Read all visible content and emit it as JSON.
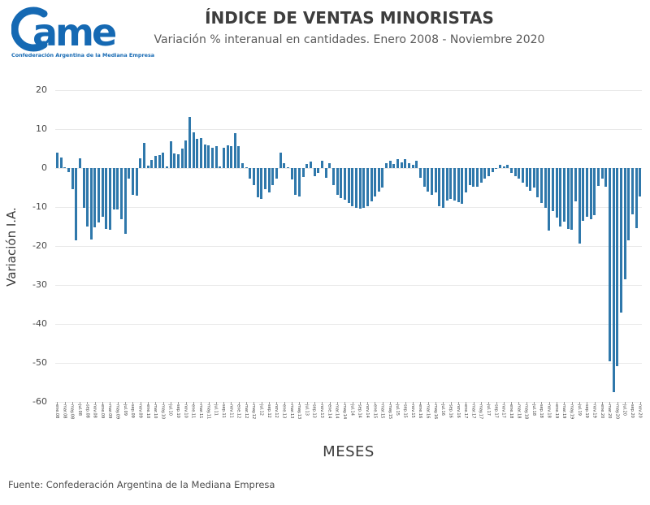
{
  "header": {
    "logo_text": "Came",
    "logo_tagline": "Confederación Argentina de la Mediana Empresa",
    "logo_color": "#1569b3",
    "title": "ÍNDICE DE VENTAS MINORISTAS",
    "subtitle": "Variación % interanual en cantidades. Enero 2008 - Noviembre 2020"
  },
  "footer": {
    "source": "Fuente: Confederación Argentina de la Mediana Empresa"
  },
  "chart_data": {
    "type": "bar",
    "title": "ÍNDICE DE VENTAS MINORISTAS",
    "subtitle": "Variación % interanual en cantidades. Enero 2008 - Noviembre 2020",
    "xlabel": "MESES",
    "ylabel": "Variación I.A.",
    "ylim": [
      -60,
      20
    ],
    "yticks": [
      20,
      10,
      0,
      -10,
      -20,
      -30,
      -40,
      -50,
      -60
    ],
    "grid": "horizontal",
    "legend": "none",
    "bar_color": "#2f78ab",
    "xtick_label_every": 2,
    "categories": [
      "ene.08",
      "feb.08",
      "mar.08",
      "abr.08",
      "may.08",
      "jun.08",
      "jul.08",
      "ago.08",
      "sep.08",
      "oct.08",
      "nov.08",
      "dic.08",
      "ene.09",
      "feb.09",
      "mar.09",
      "abr.09",
      "may.09",
      "jun.09",
      "jul.09",
      "ago.09",
      "sep.09",
      "oct.09",
      "nov.09",
      "dic.09",
      "ene.10",
      "feb.10",
      "mar.10",
      "abr.10",
      "may.10",
      "jun.10",
      "jul.10",
      "ago.10",
      "sep.10",
      "oct.10",
      "nov.10",
      "dic.10",
      "ene.11",
      "feb.11",
      "mar.11",
      "abr.11",
      "may.11",
      "jun.11",
      "jul.11",
      "ago.11",
      "sep.11",
      "oct.11",
      "nov.11",
      "dic.11",
      "ene.12",
      "feb.12",
      "mar.12",
      "abr.12",
      "may.12",
      "jun.12",
      "jul.12",
      "ago.12",
      "sep.12",
      "oct.12",
      "nov.12",
      "dic.12",
      "ene.13",
      "feb.13",
      "mar.13",
      "abr.13",
      "may.13",
      "jun.13",
      "jul.13",
      "ago.13",
      "sep.13",
      "oct.13",
      "nov.13",
      "dic.13",
      "ene.14",
      "feb.14",
      "mar.14",
      "abr.14",
      "may.14",
      "jun.14",
      "jul.14",
      "ago.14",
      "sep.14",
      "oct.14",
      "nov.14",
      "dic.14",
      "ene.15",
      "feb.15",
      "mar.15",
      "abr.15",
      "may.15",
      "jun.15",
      "jul.15",
      "ago.15",
      "sep.15",
      "oct.15",
      "nov.15",
      "dic.15",
      "ene.16",
      "feb.16",
      "mar.16",
      "abr.16",
      "may.16",
      "jun.16",
      "jul.16",
      "ago.16",
      "sep.16",
      "oct.16",
      "nov.16",
      "dic.16",
      "ene.17",
      "feb.17",
      "mar.17",
      "abr.17",
      "may.17",
      "jun.17",
      "jul.17",
      "ago.17",
      "sep.17",
      "oct.17",
      "nov.17",
      "dic.17",
      "ene.18",
      "feb.18",
      "mar.18",
      "abr.18",
      "may.18",
      "jun.18",
      "jul.18",
      "ago.18",
      "sep.18",
      "oct.18",
      "nov.18",
      "dic.18",
      "ene.19",
      "feb.19",
      "mar.19",
      "abr.19",
      "may.19",
      "jun.19",
      "jul.19",
      "ago.19",
      "sep.19",
      "oct.19",
      "nov.19",
      "dic.19",
      "ene.20",
      "feb.20",
      "mar.20",
      "abr.20",
      "may.20",
      "jun.20",
      "jul.20",
      "ago.20",
      "sep.20",
      "oct.20",
      "nov.20"
    ],
    "values": [
      3.9,
      2.8,
      0.3,
      -1.1,
      -5.5,
      -18.5,
      2.5,
      -10.3,
      -14.9,
      -18.3,
      -15.2,
      -14.0,
      -12.4,
      -15.6,
      -15.9,
      -10.7,
      -10.7,
      -13.1,
      -16.9,
      -2.7,
      -6.8,
      -7.0,
      2.5,
      6.5,
      0.6,
      2.0,
      3.2,
      3.3,
      4.0,
      0.5,
      6.8,
      3.7,
      3.5,
      5.1,
      7.0,
      13.2,
      9.1,
      7.4,
      7.7,
      6.0,
      5.8,
      5.3,
      5.6,
      0.4,
      5.3,
      5.8,
      5.6,
      9.0,
      5.6,
      1.3,
      0.2,
      -2.7,
      -4.4,
      -7.6,
      -7.9,
      -5.5,
      -6.2,
      -4.4,
      -2.7,
      3.9,
      1.3,
      0.2,
      -3.0,
      -6.9,
      -7.2,
      -2.2,
      1.1,
      1.6,
      -2.0,
      -1.3,
      1.9,
      -2.4,
      1.2,
      -4.4,
      -6.9,
      -7.8,
      -8.1,
      -9.0,
      -9.7,
      -10.2,
      -10.5,
      -10.3,
      -9.7,
      -8.6,
      -7.2,
      -6.0,
      -5.1,
      1.3,
      1.8,
      1.1,
      2.2,
      1.5,
      2.2,
      1.3,
      0.9,
      1.9,
      -2.4,
      -4.8,
      -6.0,
      -6.9,
      -6.3,
      -9.7,
      -10.3,
      -8.4,
      -7.9,
      -8.3,
      -8.8,
      -9.1,
      -6.2,
      -4.4,
      -4.8,
      -4.7,
      -3.8,
      -2.8,
      -2.0,
      -1.0,
      0.1,
      0.9,
      0.4,
      0.8,
      -1.3,
      -2.0,
      -2.8,
      -3.8,
      -4.8,
      -5.8,
      -5.1,
      -7.6,
      -9.0,
      -10.3,
      -16.0,
      -11.0,
      -12.8,
      -14.9,
      -13.8,
      -15.6,
      -15.9,
      -8.6,
      -19.4,
      -13.5,
      -12.4,
      -13.1,
      -12.1,
      -4.5,
      -2.7,
      -4.7,
      -49.5,
      -57.6,
      -50.8,
      -37.0,
      -28.6,
      -18.6,
      -11.8,
      -15.5,
      -7.3
    ]
  }
}
